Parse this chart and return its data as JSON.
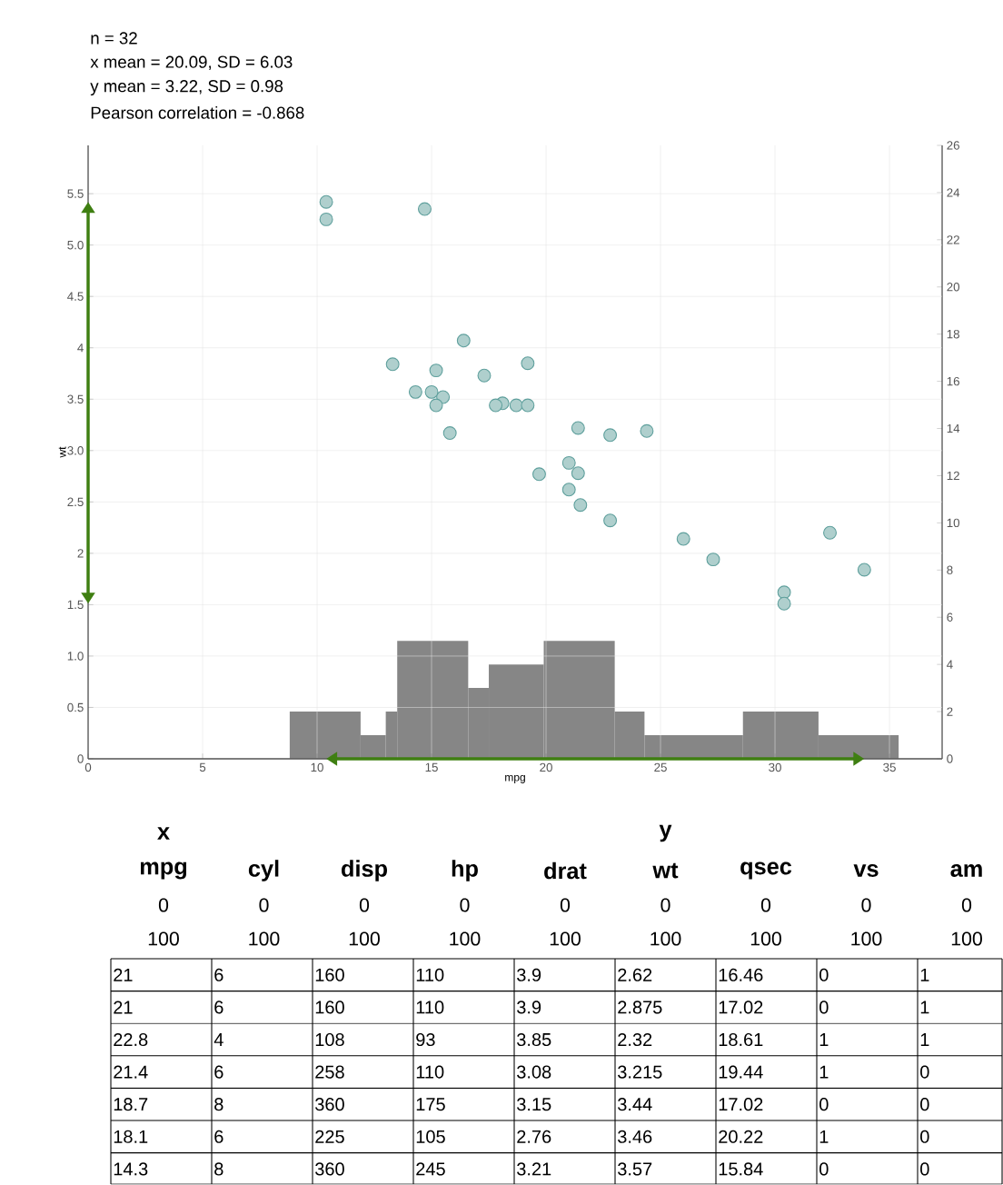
{
  "chart_data": {
    "type": "scatter",
    "xlabel": "mpg",
    "ylabel": "wt",
    "xlim": [
      0,
      37.3
    ],
    "ylim": [
      0,
      5.97
    ],
    "xticks": [
      0,
      5,
      10,
      15,
      20,
      25,
      30,
      35
    ],
    "yticks": [
      0,
      0.5,
      {
        "value": 1,
        "label": "1.0"
      },
      1.5,
      2,
      2.5,
      {
        "value": 3,
        "label": "3.0"
      },
      3.5,
      4,
      4.5,
      {
        "value": 5,
        "label": "5.0"
      },
      5.5
    ],
    "y2lim": [
      0,
      26
    ],
    "y2ticks": [
      0,
      2,
      4,
      6,
      8,
      10,
      12,
      14,
      16,
      18,
      20,
      22,
      24,
      26
    ],
    "grid": true,
    "series": [
      {
        "color": "#5e9f9c",
        "x": [
          21.0,
          21.0,
          22.8,
          21.4,
          18.7,
          18.1,
          14.3,
          24.4,
          22.8,
          19.2,
          17.8,
          16.4,
          17.3,
          15.2,
          10.4,
          10.4,
          14.7,
          32.4,
          30.4,
          33.9,
          21.5,
          15.5,
          15.2,
          13.3,
          19.2,
          27.3,
          26.0,
          30.4,
          15.8,
          19.7,
          15.0,
          21.4
        ],
        "values": [
          2.62,
          2.88,
          2.32,
          3.22,
          3.44,
          3.46,
          3.57,
          3.19,
          3.15,
          3.44,
          3.44,
          4.07,
          3.73,
          3.78,
          5.25,
          5.42,
          5.35,
          2.2,
          1.62,
          1.84,
          2.47,
          3.52,
          3.44,
          3.84,
          3.85,
          1.94,
          2.14,
          1.51,
          3.17,
          2.77,
          3.57,
          2.78
        ]
      },
      {
        "type": "histogram",
        "axis": "y2",
        "color": "#868686",
        "bins": [
          8.8,
          11.9,
          13,
          13.5,
          16.6,
          17.5,
          19.9,
          23,
          24.3,
          28.6,
          31.9,
          35.4
        ],
        "values": [
          2,
          1,
          2,
          5,
          3,
          4,
          5,
          2,
          1,
          2,
          1
        ]
      }
    ],
    "annotations": [
      "n = 32",
      "x mean = 20.09, SD = 6.03",
      "y mean = 3.22, SD = 0.98",
      "Pearson correlation = -0.868",
      "x",
      "y",
      "mpg",
      "cyl",
      "disp",
      "hp",
      "drat",
      "wt",
      "qsec",
      "vs",
      "am",
      "0",
      "0",
      "0",
      "0",
      "0",
      "0",
      "0",
      "0",
      "0",
      "100",
      "100",
      "100",
      "100",
      "100",
      "100",
      "100",
      "100",
      "100",
      "21",
      "6",
      "160",
      "110",
      "3.9",
      "2.62",
      "16.46",
      "0",
      "1",
      "21",
      "6",
      "160",
      "110",
      "3.9",
      "2.875",
      "17.02",
      "0",
      "1",
      "22.8",
      "4",
      "108",
      "93",
      "3.85",
      "2.32",
      "18.61",
      "1",
      "1",
      "21.4",
      "6",
      "258",
      "110",
      "3.08",
      "3.215",
      "19.44",
      "1",
      "0",
      "18.7",
      "8",
      "360",
      "175",
      "3.15",
      "3.44",
      "17.02",
      "0",
      "0",
      "18.1",
      "6",
      "225",
      "105",
      "2.76",
      "3.46",
      "20.22",
      "1",
      "0",
      "14.3",
      "8",
      "360",
      "245",
      "3.21",
      "3.57",
      "15.84",
      "0",
      "0"
    ]
  }
}
